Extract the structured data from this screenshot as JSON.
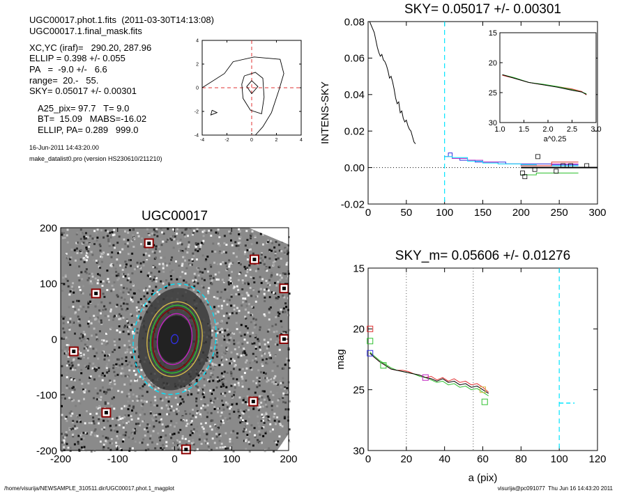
{
  "header": {
    "file_line": "UGC00017.phot.1.fits  (2011-03-30T14:13:08)",
    "mask_line": "UGC00017.1.final_mask.fits",
    "center_line": "XC,YC (iraf)=   290.20, 287.96",
    "ellip_line": "ELLIP = 0.398 +/- 0.055",
    "pa_line": "PA   =  -9.0 +/-   6.6",
    "range_line": "range=  20.-   55.",
    "sky_line": "SKY= 0.05017 +/- 0.00301",
    "a25_line": "A25_pix= 97.7   T= 9.0",
    "bt_line": "BT=  15.09   MABS=-16.02",
    "ellippa_line": "ELLIP, PA= 0.289   999.0",
    "date_line": "16-Jun-2011 14:43:20.00",
    "program_line": "make_datalist0.pro (version HS230610/211210)"
  },
  "footer": {
    "path": "/home/visurija/NEWSAMPLE_310511.dir/UGC00017.phot.1_magplot",
    "user_stamp": "visurija@pc091077  Thu Jun 16 14:43:20 2011"
  },
  "colors": {
    "cyan": "#00e5ff",
    "red": "#e03030",
    "green": "#2ec02e",
    "blue": "#3030e0",
    "magenta": "#c020c0",
    "black": "#000000",
    "marker": "#8b0000"
  },
  "chart_data": [
    {
      "id": "contour",
      "type": "contour",
      "title": "",
      "xlim": [
        -4,
        4
      ],
      "ylim": [
        -4,
        4
      ],
      "xticks": [
        -4,
        -2,
        0,
        2,
        4
      ],
      "yticks": [
        -4,
        -2,
        0,
        2,
        4
      ],
      "xtick_labels": [
        "-4",
        "-2",
        "0",
        "2",
        "4"
      ],
      "ytick_labels": [
        "-4",
        "-2",
        "0",
        "2",
        "4"
      ],
      "crosshair": [
        0,
        0
      ],
      "contours": [
        [
          [
            -4,
            0
          ],
          [
            -2.2,
            1.2
          ],
          [
            -1.5,
            2.2
          ],
          [
            0.2,
            2.6
          ],
          [
            2.3,
            2.4
          ],
          [
            2.6,
            1.2
          ],
          [
            2.2,
            -0.2
          ],
          [
            1.6,
            -2.1
          ],
          [
            0.9,
            -3.3
          ],
          [
            0.3,
            -4
          ]
        ],
        [
          [
            -0.6,
            1.0
          ],
          [
            0.3,
            1.3
          ],
          [
            0.9,
            0.8
          ],
          [
            1.0,
            -0.8
          ],
          [
            0.8,
            -2.2
          ],
          [
            -0.1,
            -1.9
          ],
          [
            -0.7,
            -0.9
          ],
          [
            -0.8,
            0.3
          ],
          [
            -0.6,
            1.0
          ]
        ],
        [
          [
            0.0,
            0.6
          ],
          [
            0.5,
            0.1
          ],
          [
            0.0,
            -0.5
          ],
          [
            -0.4,
            0.1
          ],
          [
            0.0,
            0.6
          ]
        ],
        [
          [
            -3.2,
            -1.9
          ],
          [
            -2.8,
            -2.1
          ],
          [
            -3.3,
            -2.3
          ],
          [
            -3.2,
            -1.9
          ]
        ]
      ]
    },
    {
      "id": "sky_profile",
      "type": "line",
      "title": "SKY= 0.05017 +/- 0.00301",
      "xlabel": "",
      "ylabel": "INTENS-SKY",
      "xlim": [
        0,
        300
      ],
      "ylim": [
        -0.02,
        0.08
      ],
      "xticks": [
        0,
        50,
        100,
        150,
        200,
        250,
        300
      ],
      "yticks": [
        -0.02,
        0.0,
        0.02,
        0.04,
        0.06,
        0.08
      ],
      "xtick_labels": [
        "0",
        "50",
        "100",
        "150",
        "200",
        "250",
        "300"
      ],
      "ytick_labels": [
        "-0.02",
        "0.00",
        "0.02",
        "0.04",
        "0.06",
        "0.08"
      ],
      "vline": 100,
      "hline": 0,
      "series": [
        {
          "color": "#000000",
          "style": "line",
          "x": [
            2,
            5,
            8,
            10,
            12,
            14,
            16,
            18,
            20,
            22,
            24,
            26,
            28,
            30,
            32,
            34,
            36,
            38,
            40,
            42,
            44,
            46,
            48,
            50,
            52,
            54,
            56,
            58,
            60,
            62
          ],
          "y": [
            0.08,
            0.077,
            0.074,
            0.07,
            0.066,
            0.063,
            0.061,
            0.062,
            0.059,
            0.058,
            0.056,
            0.053,
            0.049,
            0.05,
            0.047,
            0.043,
            0.038,
            0.035,
            0.036,
            0.03,
            0.031,
            0.027,
            0.025,
            0.026,
            0.023,
            0.021,
            0.02,
            0.017,
            0.014,
            0.013
          ]
        },
        {
          "color": "#3030e0",
          "style": "step",
          "x": [
            100,
            105,
            110,
            120,
            140,
            160,
            180,
            200,
            220,
            240,
            260,
            275
          ],
          "y": [
            0.006,
            0.008,
            0.005,
            0.004,
            0.003,
            0.003,
            0.002,
            0.002,
            0.002,
            0.0015,
            0.0015,
            0.0015
          ]
        },
        {
          "color": "#c020c0",
          "style": "step",
          "x": [
            100,
            110,
            130,
            150,
            170,
            200,
            220,
            240,
            260,
            275
          ],
          "y": [
            0.006,
            0.005,
            0.004,
            0.003,
            0.002,
            0.001,
            0.001,
            0.002,
            0.002,
            0.002
          ]
        },
        {
          "color": "#00e5ff",
          "style": "step",
          "x": [
            100,
            110,
            130,
            150,
            170,
            200,
            220,
            240,
            260,
            275
          ],
          "y": [
            0.006,
            0.0055,
            0.0035,
            0.0025,
            0.002,
            0.0015,
            0.001,
            0.001,
            0.001,
            0.001
          ]
        },
        {
          "color": "#e03030",
          "style": "step",
          "x": [
            200,
            220,
            240,
            260,
            275
          ],
          "y": [
            0.001,
            0.001,
            0.003,
            0.003,
            0.003
          ]
        },
        {
          "color": "#2ec02e",
          "style": "step",
          "x": [
            200,
            220,
            240,
            260,
            275
          ],
          "y": [
            -0.004,
            -0.003,
            -0.003,
            -0.003,
            -0.003
          ]
        },
        {
          "color": "#000000",
          "style": "thick",
          "x": [
            200,
            300
          ],
          "y": [
            0.0,
            0.0
          ]
        }
      ],
      "markers": {
        "x": [
          202,
          205,
          218,
          222,
          246,
          255,
          265,
          286
        ],
        "y": [
          -0.003,
          -0.005,
          -0.001,
          0.006,
          -0.002,
          0.001,
          0.001,
          0.001
        ]
      },
      "inset": {
        "xlabel": "a^0.25",
        "xlim": [
          1.0,
          3.0
        ],
        "ylim": [
          15,
          30
        ],
        "xticks": [
          1.0,
          1.5,
          2.0,
          2.5,
          3.0
        ],
        "yticks": [
          15,
          20,
          25,
          30
        ],
        "xtick_labels": [
          "1.0",
          "1.5",
          "2.0",
          "2.5",
          "3.0"
        ],
        "ytick_labels": [
          "15",
          "20",
          "25",
          "30"
        ],
        "series": [
          {
            "color": "#e03030",
            "x": [
              1.05,
              1.3,
              1.6,
              1.9,
              2.2,
              2.5,
              2.7,
              2.8
            ],
            "y": [
              22.1,
              22.6,
              23.3,
              23.7,
              24.0,
              24.4,
              24.8,
              25.4
            ]
          },
          {
            "color": "#2ec02e",
            "x": [
              1.05,
              1.3,
              1.6,
              1.9,
              2.2,
              2.5,
              2.7,
              2.8
            ],
            "y": [
              22.0,
              22.5,
              23.3,
              23.6,
              24.0,
              24.5,
              24.9,
              25.2
            ]
          },
          {
            "color": "#000000",
            "x": [
              1.05,
              1.3,
              1.6,
              1.9,
              2.2,
              2.5,
              2.7,
              2.8
            ],
            "y": [
              22.0,
              22.6,
              23.3,
              23.7,
              24.1,
              24.6,
              24.9,
              25.3
            ]
          }
        ]
      }
    },
    {
      "id": "image",
      "type": "image",
      "title": "UGC00017",
      "xlim": [
        -200,
        200
      ],
      "ylim": [
        -200,
        200
      ],
      "xticks": [
        -200,
        -100,
        0,
        100,
        200
      ],
      "yticks": [
        -200,
        -100,
        0,
        100,
        200
      ],
      "xtick_labels": [
        "-200",
        "-100",
        "0",
        "100",
        "200"
      ],
      "ytick_labels": [
        "-200",
        "-100",
        "0",
        "100",
        "200"
      ],
      "masked_stars": [
        [
          -45,
          172
        ],
        [
          140,
          143
        ],
        [
          -138,
          82
        ],
        [
          192,
          91
        ],
        [
          192,
          0
        ],
        [
          -177,
          -22
        ],
        [
          -120,
          -132
        ],
        [
          138,
          -112
        ],
        [
          20,
          -198
        ]
      ],
      "ellipses": [
        {
          "color": "#00e5ff",
          "a": 97.7,
          "b": 72
        },
        {
          "color": "#d4b84a",
          "a": 66,
          "b": 48
        },
        {
          "color": "#2ec02e",
          "a": 60,
          "b": 42
        },
        {
          "color": "#8b0000",
          "a": 55,
          "b": 38
        },
        {
          "color": "#c020c0",
          "a": 45,
          "b": 30
        },
        {
          "color": "#3030e0",
          "a": 8,
          "b": 6
        }
      ],
      "ellipse_pa": -9.0
    },
    {
      "id": "mag_profile",
      "type": "line",
      "title": "SKY_m=  0.05606 +/- 0.01276",
      "xlabel": "a (pix)",
      "ylabel": "mag",
      "xlim": [
        0,
        120
      ],
      "ylim": [
        30,
        15
      ],
      "xticks": [
        0,
        20,
        40,
        60,
        80,
        100,
        120
      ],
      "yticks": [
        15,
        20,
        25,
        30
      ],
      "xtick_labels": [
        "0",
        "20",
        "40",
        "60",
        "80",
        "100",
        "120"
      ],
      "ytick_labels": [
        "15",
        "20",
        "25",
        "30"
      ],
      "vlines_dotted": [
        20,
        55
      ],
      "vline_dashed": 100,
      "hline_dashed": {
        "x": [
          100,
          108
        ],
        "y": 26.1
      },
      "series": [
        {
          "color": "#e03030",
          "x": [
            1,
            3,
            6,
            9,
            12,
            15,
            18,
            21,
            24,
            27,
            30,
            33,
            36,
            39,
            42,
            45,
            48,
            51,
            54,
            57,
            60,
            63
          ],
          "y": [
            22.0,
            22.3,
            22.7,
            23.0,
            23.3,
            23.4,
            23.4,
            23.5,
            23.7,
            23.8,
            24.0,
            23.9,
            24.2,
            24.0,
            24.3,
            24.1,
            24.4,
            24.3,
            24.6,
            24.5,
            24.8,
            25.2
          ]
        },
        {
          "color": "#2ec02e",
          "x": [
            1,
            3,
            6,
            9,
            12,
            15,
            18,
            21,
            24,
            27,
            30,
            33,
            36,
            39,
            42,
            45,
            48,
            51,
            54,
            57,
            60,
            63
          ],
          "y": [
            21.9,
            22.2,
            22.6,
            22.9,
            23.2,
            23.4,
            23.5,
            23.6,
            23.7,
            23.9,
            24.0,
            24.2,
            24.4,
            24.3,
            24.6,
            24.5,
            24.8,
            24.7,
            25.0,
            24.9,
            25.2,
            25.5
          ]
        },
        {
          "color": "#000000",
          "x": [
            1,
            3,
            6,
            9,
            12,
            15,
            18,
            21,
            24,
            27,
            30,
            33,
            36,
            39,
            42,
            45,
            48,
            51,
            54,
            57,
            60,
            63
          ],
          "y": [
            22.0,
            22.3,
            22.7,
            23.0,
            23.3,
            23.4,
            23.5,
            23.6,
            23.7,
            23.8,
            24.0,
            24.1,
            24.3,
            24.1,
            24.4,
            24.3,
            24.6,
            24.5,
            24.8,
            24.7,
            25.0,
            25.3
          ]
        }
      ],
      "markers": [
        {
          "color": "#e03030",
          "x": 1,
          "y": 20.0
        },
        {
          "color": "#2ec02e",
          "x": 1,
          "y": 21.0
        },
        {
          "color": "#3030e0",
          "x": 1,
          "y": 22.0
        },
        {
          "color": "#2ec02e",
          "x": 8,
          "y": 23.0
        },
        {
          "color": "#c020c0",
          "x": 30,
          "y": 24.0
        },
        {
          "color": "#d4b84a",
          "x": 60,
          "y": 25.0
        },
        {
          "color": "#2ec02e",
          "x": 61,
          "y": 26.0
        }
      ]
    }
  ]
}
